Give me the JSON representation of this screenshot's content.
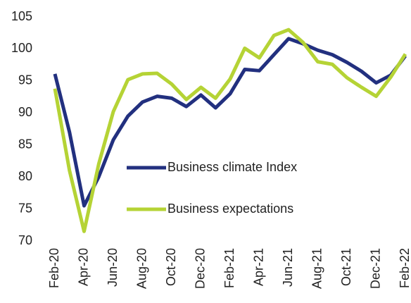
{
  "chart_data": {
    "type": "line",
    "categories": [
      "Feb-20",
      null,
      "Apr-20",
      null,
      "Jun-20",
      null,
      "Aug-20",
      null,
      "Oct-20",
      null,
      "Dec-20",
      null,
      "Feb-21",
      null,
      "Apr-21",
      null,
      "Jun-21",
      null,
      "Aug-21",
      null,
      "Oct-21",
      null,
      "Dec-21",
      null,
      "Feb-22"
    ],
    "series": [
      {
        "name": "Business climate Index",
        "color": "#22307f",
        "values": [
          96.1,
          87,
          75.5,
          80,
          85.8,
          89.5,
          91.7,
          92.6,
          92.3,
          91,
          92.8,
          90.8,
          93,
          96.8,
          96.6,
          99.1,
          101.6,
          100.8,
          99.8,
          99.1,
          97.9,
          96.5,
          94.7,
          95.9,
          98.9
        ]
      },
      {
        "name": "Business expectations",
        "color": "#b5d335",
        "values": [
          93.8,
          81,
          71.5,
          82,
          90.2,
          95.2,
          96.1,
          96.2,
          94.5,
          92.1,
          94,
          92.3,
          95.3,
          100.1,
          98.6,
          102.1,
          103,
          101,
          98,
          97.6,
          95.5,
          94,
          92.6,
          95.6,
          99.2
        ]
      }
    ],
    "ylim": [
      70,
      105
    ],
    "yticks": [
      70,
      75,
      80,
      85,
      90,
      95,
      100,
      105
    ],
    "grid": false,
    "legend": "center"
  }
}
